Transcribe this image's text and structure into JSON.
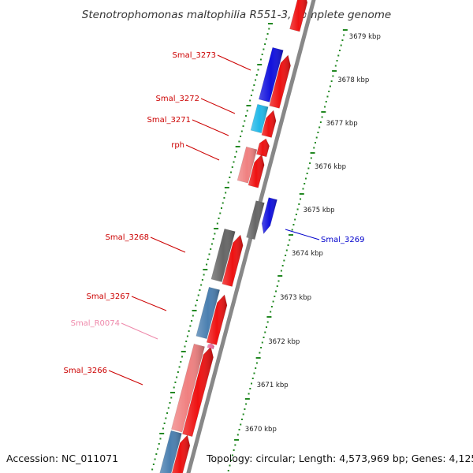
{
  "title": "Stenotrophomonas maltophilia R551-3, complete genome",
  "accession": "Accession: NC_011071",
  "topology": "Topology: circular; Length: 4,573,969 bp; Genes: 4,125",
  "colors": {
    "forward_cds": "#ee1111",
    "reverse_cds": "#1111dd",
    "grey_cds": "#666666",
    "steel_cds": "#4a7fb0",
    "cyan_cds": "#22b8e8",
    "pink_cds": "#f08080",
    "rna": "#f06aa0",
    "tick": "#228822",
    "label_red": "#cc0000",
    "label_blue": "#0000cc",
    "label_pink": "#ee88aa"
  },
  "scale": {
    "unit": "kbp",
    "ticks": [
      {
        "value": 3679,
        "label": "3679 kbp"
      },
      {
        "value": 3678,
        "label": "3678 kbp"
      },
      {
        "value": 3677,
        "label": "3677 kbp"
      },
      {
        "value": 3676,
        "label": "3676 kbp"
      },
      {
        "value": 3675,
        "label": "3675 kbp"
      },
      {
        "value": 3674,
        "label": "3674 kbp"
      },
      {
        "value": 3673,
        "label": "3673 kbp"
      },
      {
        "value": 3672,
        "label": "3672 kbp"
      },
      {
        "value": 3671,
        "label": "3671 kbp"
      },
      {
        "value": 3670,
        "label": "3670 kbp"
      }
    ]
  },
  "gene_labels": [
    {
      "name": "Smal_3273",
      "color_key": "label_red"
    },
    {
      "name": "Smal_3272",
      "color_key": "label_red"
    },
    {
      "name": "Smal_3271",
      "color_key": "label_red"
    },
    {
      "name": "rph",
      "color_key": "label_red"
    },
    {
      "name": "Smal_3269",
      "color_key": "label_blue"
    },
    {
      "name": "Smal_3268",
      "color_key": "label_red"
    },
    {
      "name": "Smal_3267",
      "color_key": "label_red"
    },
    {
      "name": "Smal_R0074",
      "color_key": "label_pink"
    },
    {
      "name": "Smal_3266",
      "color_key": "label_red"
    }
  ]
}
